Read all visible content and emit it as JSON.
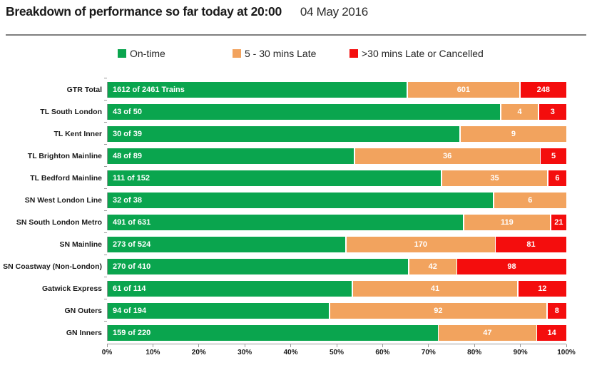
{
  "header": {
    "title": "Breakdown of performance so far today at 20:00",
    "date": "04 May 2016"
  },
  "legend": [
    {
      "label": "On-time",
      "color": "#0aa54e"
    },
    {
      "label": "5 - 30 mins Late",
      "color": "#f2a35e"
    },
    {
      "label": ">30 mins Late or Cancelled",
      "color": "#f40d0d"
    }
  ],
  "chart_data": {
    "type": "bar",
    "orientation": "horizontal",
    "stacked": true,
    "xlim": [
      0,
      100
    ],
    "x_ticks": [
      "0%",
      "10%",
      "20%",
      "30%",
      "40%",
      "50%",
      "60%",
      "70%",
      "80%",
      "90%",
      "100%"
    ],
    "series_names": [
      "On-time",
      "5 - 30 mins Late",
      ">30 mins Late or Cancelled"
    ],
    "colors": {
      "on_time": "#0aa54e",
      "late": "#f2a35e",
      "very_late": "#f40d0d"
    },
    "rows": [
      {
        "category": "GTR Total",
        "total": 2461,
        "on_time": 1612,
        "late": 601,
        "very_late": 248,
        "on_time_label": "1612 of 2461 Trains",
        "late_label": "601",
        "very_late_label": "248"
      },
      {
        "category": "TL South London",
        "total": 50,
        "on_time": 43,
        "late": 4,
        "very_late": 3,
        "on_time_label": "43 of 50",
        "late_label": "4",
        "very_late_label": "3"
      },
      {
        "category": "TL Kent Inner",
        "total": 39,
        "on_time": 30,
        "late": 9,
        "very_late": 0,
        "on_time_label": "30 of 39",
        "late_label": "9",
        "very_late_label": ""
      },
      {
        "category": "TL Brighton Mainline",
        "total": 89,
        "on_time": 48,
        "late": 36,
        "very_late": 5,
        "on_time_label": "48 of 89",
        "late_label": "36",
        "very_late_label": "5"
      },
      {
        "category": "TL Bedford Mainline",
        "total": 152,
        "on_time": 111,
        "late": 35,
        "very_late": 6,
        "on_time_label": "111 of 152",
        "late_label": "35",
        "very_late_label": "6"
      },
      {
        "category": "SN West London Line",
        "total": 38,
        "on_time": 32,
        "late": 6,
        "very_late": 0,
        "on_time_label": "32 of 38",
        "late_label": "6",
        "very_late_label": ""
      },
      {
        "category": "SN South London Metro",
        "total": 631,
        "on_time": 491,
        "late": 119,
        "very_late": 21,
        "on_time_label": "491 of 631",
        "late_label": "119",
        "very_late_label": "21"
      },
      {
        "category": "SN Mainline",
        "total": 524,
        "on_time": 273,
        "late": 170,
        "very_late": 81,
        "on_time_label": "273 of 524",
        "late_label": "170",
        "very_late_label": "81"
      },
      {
        "category": "SN Coastway (Non-London)",
        "total": 410,
        "on_time": 270,
        "late": 42,
        "very_late": 98,
        "on_time_label": "270 of 410",
        "late_label": "42",
        "very_late_label": "98"
      },
      {
        "category": "Gatwick Express",
        "total": 114,
        "on_time": 61,
        "late": 41,
        "very_late": 12,
        "on_time_label": "61 of 114",
        "late_label": "41",
        "very_late_label": "12"
      },
      {
        "category": "GN Outers",
        "total": 194,
        "on_time": 94,
        "late": 92,
        "very_late": 8,
        "on_time_label": "94 of 194",
        "late_label": "92",
        "very_late_label": "8"
      },
      {
        "category": "GN Inners",
        "total": 220,
        "on_time": 159,
        "late": 47,
        "very_late": 14,
        "on_time_label": "159 of 220",
        "late_label": "47",
        "very_late_label": "14"
      }
    ]
  }
}
